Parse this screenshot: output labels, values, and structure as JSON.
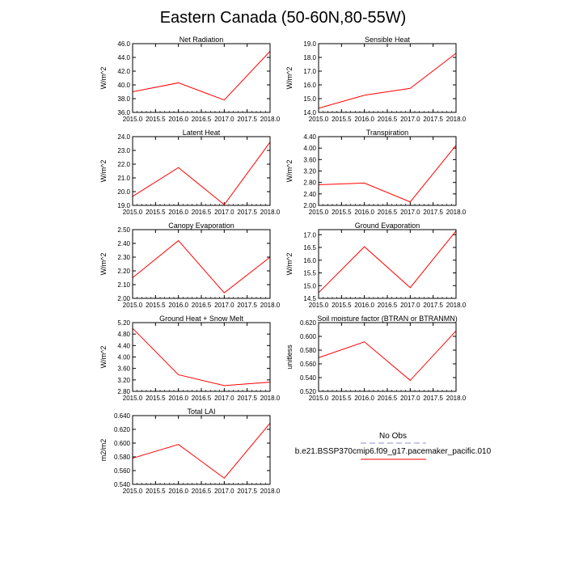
{
  "figure": {
    "title": "Eastern Canada (50-60N,80-55W)"
  },
  "chart_data": [
    {
      "type": "line",
      "title": "Net Radiation",
      "ylabel": "W/m^2",
      "x": [
        2015.0,
        2016.0,
        2017.0,
        2018.0
      ],
      "xlim": [
        2015.0,
        2018.0
      ],
      "xticks": [
        "2015.0",
        "2015.5",
        "2016.0",
        "2016.5",
        "2017.0",
        "2017.5",
        "2018.0"
      ],
      "ylim": [
        36.0,
        46.0
      ],
      "yticks": [
        "36.0",
        "38.0",
        "40.0",
        "42.0",
        "44.0",
        "46.0"
      ],
      "series": [
        {
          "name": "b.e21.BSSP370cmip6.f09_g17.pacemaker_pacific.010",
          "values": [
            39.0,
            40.3,
            37.8,
            44.9
          ]
        }
      ]
    },
    {
      "type": "line",
      "title": "Sensible Heat",
      "ylabel": "W/m^2",
      "x": [
        2015.0,
        2016.0,
        2017.0,
        2018.0
      ],
      "xlim": [
        2015.0,
        2018.0
      ],
      "xticks": [
        "2015.0",
        "2015.5",
        "2016.0",
        "2016.5",
        "2017.0",
        "2017.5",
        "2018.0"
      ],
      "ylim": [
        14.0,
        19.0
      ],
      "yticks": [
        "14.0",
        "15.0",
        "16.0",
        "17.0",
        "18.0",
        "19.0"
      ],
      "series": [
        {
          "name": "b.e21.BSSP370cmip6.f09_g17.pacemaker_pacific.010",
          "values": [
            14.3,
            15.25,
            15.75,
            18.3
          ]
        }
      ]
    },
    {
      "type": "line",
      "title": "Latent Heat",
      "ylabel": "W/m^2",
      "x": [
        2015.0,
        2016.0,
        2017.0,
        2018.0
      ],
      "xlim": [
        2015.0,
        2018.0
      ],
      "xticks": [
        "2015.0",
        "2015.5",
        "2016.0",
        "2016.5",
        "2017.0",
        "2017.5",
        "2018.0"
      ],
      "ylim": [
        19.0,
        24.0
      ],
      "yticks": [
        "19.0",
        "20.0",
        "21.0",
        "22.0",
        "23.0",
        "24.0"
      ],
      "series": [
        {
          "name": "b.e21.BSSP370cmip6.f09_g17.pacemaker_pacific.010",
          "values": [
            19.65,
            21.75,
            19.05,
            23.6
          ]
        }
      ]
    },
    {
      "type": "line",
      "title": "Transpiration",
      "ylabel": "W/m^2",
      "x": [
        2015.0,
        2016.0,
        2017.0,
        2018.0
      ],
      "xlim": [
        2015.0,
        2018.0
      ],
      "xticks": [
        "2015.0",
        "2015.5",
        "2016.0",
        "2016.5",
        "2017.0",
        "2017.5",
        "2018.0"
      ],
      "ylim": [
        2.0,
        4.4
      ],
      "yticks": [
        "2.00",
        "2.40",
        "2.80",
        "3.20",
        "3.60",
        "4.00",
        "4.40"
      ],
      "series": [
        {
          "name": "b.e21.BSSP370cmip6.f09_g17.pacemaker_pacific.010",
          "values": [
            2.72,
            2.78,
            2.12,
            4.1
          ]
        }
      ]
    },
    {
      "type": "line",
      "title": "Canopy Evaporation",
      "ylabel": "W/m^2",
      "x": [
        2015.0,
        2016.0,
        2017.0,
        2018.0
      ],
      "xlim": [
        2015.0,
        2018.0
      ],
      "xticks": [
        "2015.0",
        "2015.5",
        "2016.0",
        "2016.5",
        "2017.0",
        "2017.5",
        "2018.0"
      ],
      "ylim": [
        2.0,
        2.5
      ],
      "yticks": [
        "2.00",
        "2.10",
        "2.20",
        "2.30",
        "2.40",
        "2.50"
      ],
      "series": [
        {
          "name": "b.e21.BSSP370cmip6.f09_g17.pacemaker_pacific.010",
          "values": [
            2.15,
            2.42,
            2.04,
            2.3
          ]
        }
      ]
    },
    {
      "type": "line",
      "title": "Ground Evaporation",
      "ylabel": "W/m^2",
      "x": [
        2015.0,
        2016.0,
        2017.0,
        2018.0
      ],
      "xlim": [
        2015.0,
        2018.0
      ],
      "xticks": [
        "2015.0",
        "2015.5",
        "2016.0",
        "2016.5",
        "2017.0",
        "2017.5",
        "2018.0"
      ],
      "ylim": [
        14.5,
        17.2
      ],
      "yticks": [
        "14.5",
        "15.0",
        "15.5",
        "16.0",
        "16.5",
        "17.0"
      ],
      "series": [
        {
          "name": "b.e21.BSSP370cmip6.f09_g17.pacemaker_pacific.010",
          "values": [
            14.72,
            16.53,
            14.92,
            17.15
          ]
        }
      ]
    },
    {
      "type": "line",
      "title": "Ground Heat + Snow Melt",
      "ylabel": "W/m^2",
      "x": [
        2015.0,
        2016.0,
        2017.0,
        2018.0
      ],
      "xlim": [
        2015.0,
        2018.0
      ],
      "xticks": [
        "2015.0",
        "2015.5",
        "2016.0",
        "2016.5",
        "2017.0",
        "2017.5",
        "2018.0"
      ],
      "ylim": [
        2.8,
        5.2
      ],
      "yticks": [
        "2.80",
        "3.20",
        "3.60",
        "4.00",
        "4.40",
        "4.80",
        "5.20"
      ],
      "series": [
        {
          "name": "b.e21.BSSP370cmip6.f09_g17.pacemaker_pacific.010",
          "values": [
            5.0,
            3.38,
            3.0,
            3.12
          ]
        }
      ]
    },
    {
      "type": "line",
      "title": "Soil moisture factor (BTRAN or BTRANMN)",
      "ylabel": "unitless",
      "x": [
        2015.0,
        2016.0,
        2017.0,
        2018.0
      ],
      "xlim": [
        2015.0,
        2018.0
      ],
      "xticks": [
        "2015.0",
        "2015.5",
        "2016.0",
        "2016.5",
        "2017.0",
        "2017.5",
        "2018.0"
      ],
      "ylim": [
        0.52,
        0.62
      ],
      "yticks": [
        "0.520",
        "0.540",
        "0.560",
        "0.580",
        "0.600",
        "0.620"
      ],
      "series": [
        {
          "name": "b.e21.BSSP370cmip6.f09_g17.pacemaker_pacific.010",
          "values": [
            0.569,
            0.592,
            0.536,
            0.608
          ]
        }
      ]
    },
    {
      "type": "line",
      "title": "Total LAI",
      "ylabel": "m2/m2",
      "x": [
        2015.0,
        2016.0,
        2017.0,
        2018.0
      ],
      "xlim": [
        2015.0,
        2018.0
      ],
      "xticks": [
        "2015.0",
        "2015.5",
        "2016.0",
        "2016.5",
        "2017.0",
        "2017.5",
        "2018.0"
      ],
      "ylim": [
        0.54,
        0.64
      ],
      "yticks": [
        "0.540",
        "0.560",
        "0.580",
        "0.600",
        "0.620",
        "0.640"
      ],
      "series": [
        {
          "name": "b.e21.BSSP370cmip6.f09_g17.pacemaker_pacific.010",
          "values": [
            0.578,
            0.598,
            0.549,
            0.629
          ]
        }
      ]
    }
  ],
  "legend": {
    "entries": [
      {
        "label": "No Obs",
        "color": "#b3b3e6",
        "style": "dashed"
      },
      {
        "label": "b.e21.BSSP370cmip6.f09_g17.pacemaker_pacific.010",
        "color": "#ff0000",
        "style": "solid"
      }
    ]
  },
  "colors": {
    "series": "#ff0000",
    "axis": "#000000"
  }
}
